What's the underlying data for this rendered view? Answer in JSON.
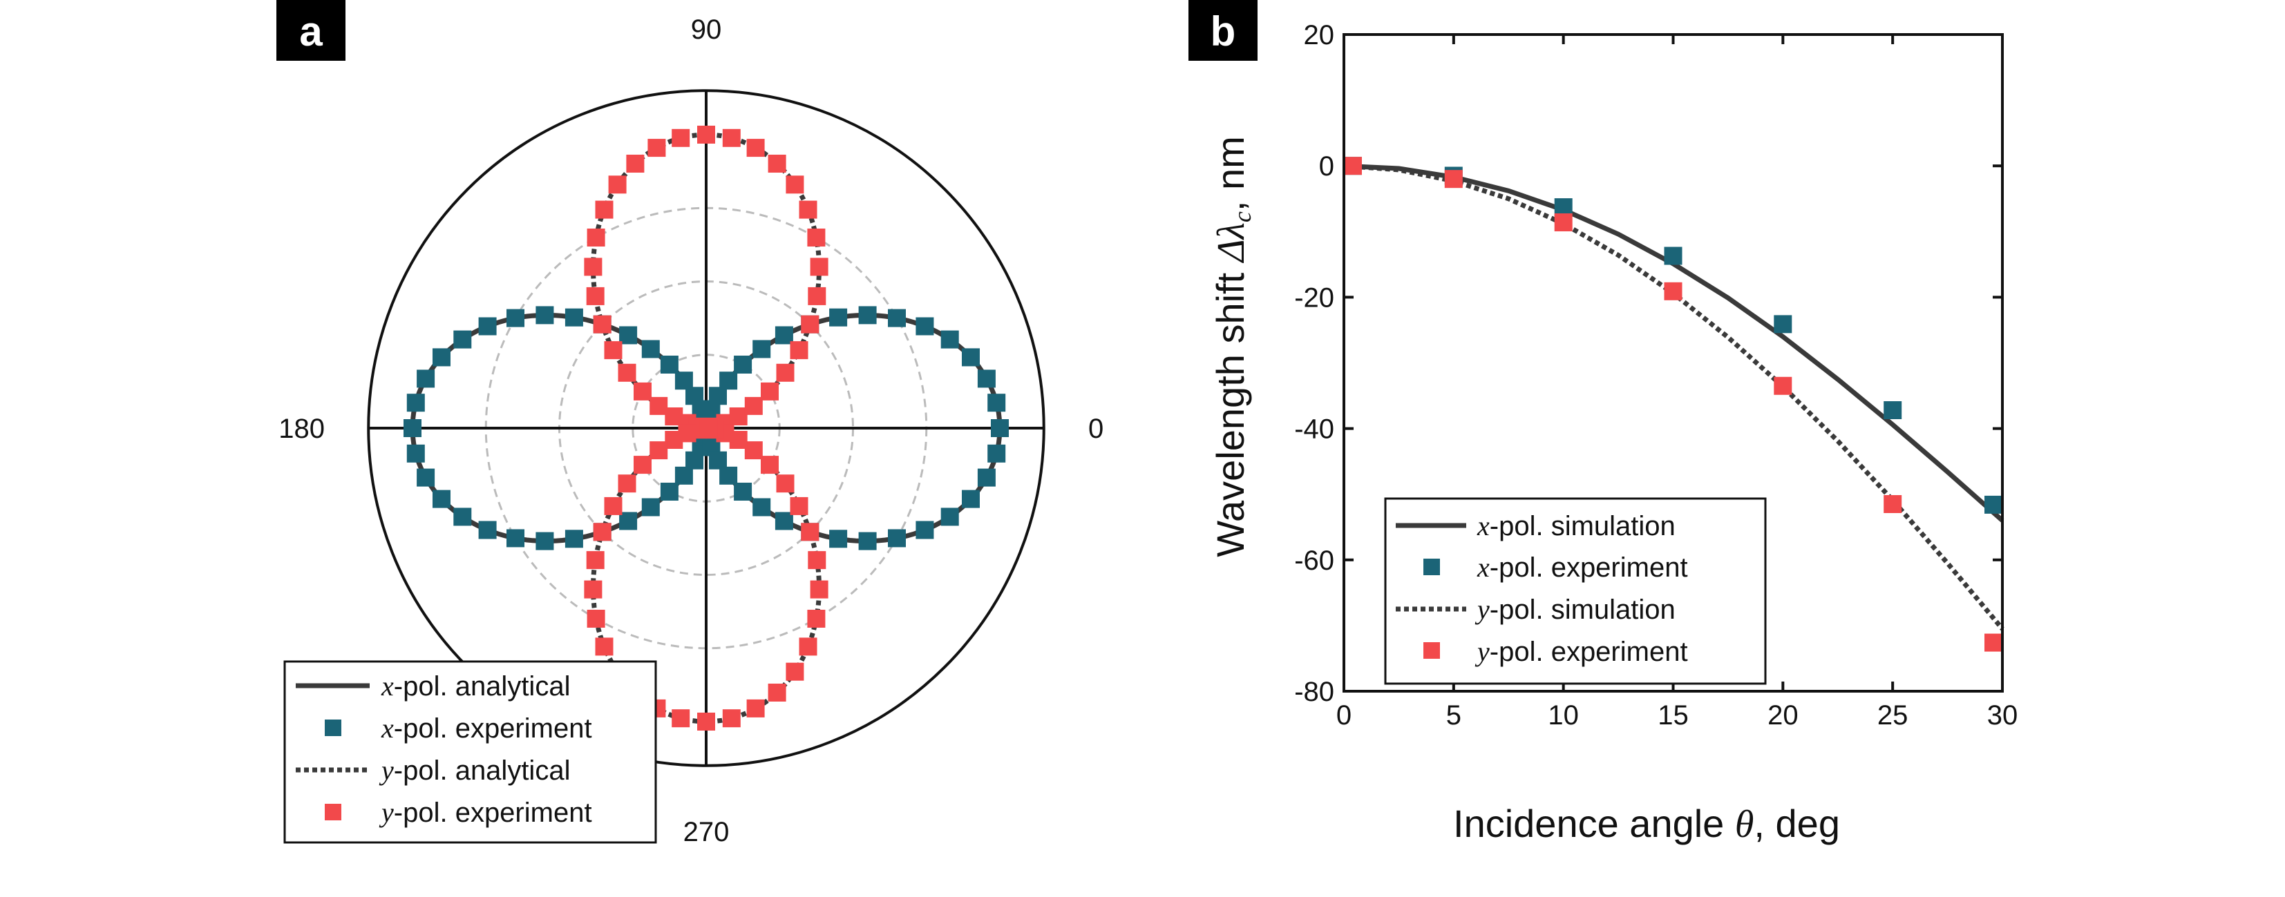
{
  "colors": {
    "x_pol": "#1b6477",
    "y_pol": "#f2494b",
    "line": "#3a3a3a",
    "grid": "#bbbbbb",
    "label_bg": "#000000"
  },
  "chart_data": [
    {
      "type": "polar",
      "panel_label": "a",
      "angle_unit": "deg",
      "angle_labels": {
        "a0": "0",
        "a90": "90",
        "a180": "180",
        "a270": "270"
      },
      "radial_range": [
        0,
        1
      ],
      "radial_gridlines": [
        0.25,
        0.5,
        0.75
      ],
      "outer_radius": 1.15,
      "grid": true,
      "legend_position": "bottom-left",
      "series": [
        {
          "name": "x-pol. analytical",
          "prefix": "x",
          "suffix": "-pol. analytical",
          "kind": "line",
          "style": "solid",
          "model": "r = cos^2(theta)",
          "range_start": 0,
          "range_end": 360
        },
        {
          "name": "x-pol. experiment",
          "prefix": "x",
          "suffix": "-pol. experiment",
          "kind": "markers",
          "marker": "square",
          "angles": [
            0,
            5,
            10,
            15,
            20,
            25,
            30,
            35,
            40,
            45,
            50,
            55,
            60,
            65,
            70,
            75,
            80,
            85,
            90,
            95,
            100,
            105,
            110,
            115,
            120,
            125,
            130,
            135,
            140,
            145,
            150,
            155,
            160,
            165,
            170,
            175,
            180,
            185,
            190,
            195,
            200,
            205,
            210,
            215,
            220,
            225,
            230,
            235,
            240,
            245,
            250,
            255,
            260,
            265,
            270,
            275,
            280,
            285,
            290,
            295,
            300,
            305,
            310,
            315,
            320,
            325,
            330,
            335,
            340,
            345,
            350,
            355
          ],
          "model": "r = cos^2(theta)"
        },
        {
          "name": "y-pol. analytical",
          "prefix": "y",
          "suffix": "-pol. analytical",
          "kind": "line",
          "style": "dotted",
          "model": "r = sin^2(theta)",
          "range_start": 0,
          "range_end": 360
        },
        {
          "name": "y-pol. experiment",
          "prefix": "y",
          "suffix": "-pol. experiment",
          "kind": "markers",
          "marker": "square",
          "angles": [
            0,
            5,
            10,
            15,
            20,
            25,
            30,
            35,
            40,
            45,
            50,
            55,
            60,
            65,
            70,
            75,
            80,
            85,
            90,
            95,
            100,
            105,
            110,
            115,
            120,
            125,
            130,
            135,
            140,
            145,
            150,
            155,
            160,
            165,
            170,
            175,
            180,
            185,
            190,
            195,
            200,
            205,
            210,
            215,
            220,
            225,
            230,
            235,
            240,
            245,
            250,
            255,
            260,
            265,
            270,
            275,
            280,
            285,
            290,
            295,
            300,
            305,
            310,
            315,
            320,
            325,
            330,
            335,
            340,
            345,
            350,
            355
          ],
          "model": "r = sin^2(theta)"
        }
      ]
    },
    {
      "type": "line",
      "panel_label": "b",
      "xlabel": "Incidence angle",
      "xlabel_symbol": "θ",
      "xlabel_unit": ", deg",
      "ylabel": "Wavelength shift",
      "ylabel_symbol": "Δλ",
      "ylabel_subscript": "c",
      "ylabel_unit": ", nm",
      "xlim": [
        0,
        30
      ],
      "ylim": [
        -80,
        20
      ],
      "xticks": [
        0,
        5,
        10,
        15,
        20,
        25,
        30
      ],
      "yticks": [
        -80,
        -60,
        -40,
        -20,
        0,
        20
      ],
      "grid": false,
      "legend_position": "bottom-left",
      "series": [
        {
          "name": "x-pol. simulation",
          "prefix": "x",
          "suffix": "-pol. simulation",
          "kind": "line",
          "style": "solid",
          "x": [
            0,
            2.5,
            5,
            7.5,
            10,
            12.5,
            15,
            17.5,
            20,
            22.5,
            25,
            27.5,
            30
          ],
          "y": [
            0,
            -0.4,
            -1.7,
            -3.8,
            -6.7,
            -10.4,
            -14.9,
            -20.1,
            -26.0,
            -32.5,
            -39.4,
            -46.6,
            -54.0
          ]
        },
        {
          "name": "x-pol. experiment",
          "prefix": "x",
          "suffix": "-pol. experiment",
          "kind": "markers",
          "marker": "square",
          "x": [
            0,
            5,
            10,
            15,
            20,
            25,
            30
          ],
          "y": [
            0,
            -1.5,
            -6.3,
            -13.7,
            -24.1,
            -37.2,
            -51.6
          ]
        },
        {
          "name": "y-pol. simulation",
          "prefix": "y",
          "suffix": "-pol. simulation",
          "kind": "line",
          "style": "dotted",
          "x": [
            0,
            2.5,
            5,
            7.5,
            10,
            12.5,
            15,
            17.5,
            20,
            22.5,
            25,
            27.5,
            30
          ],
          "y": [
            0,
            -0.6,
            -2.3,
            -5.0,
            -8.8,
            -13.6,
            -19.4,
            -26.1,
            -33.6,
            -41.9,
            -50.9,
            -60.5,
            -70.5
          ]
        },
        {
          "name": "y-pol. experiment",
          "prefix": "y",
          "suffix": "-pol. experiment",
          "kind": "markers",
          "marker": "square",
          "x": [
            0,
            5,
            10,
            15,
            20,
            25,
            30
          ],
          "y": [
            0,
            -2.0,
            -8.6,
            -19.1,
            -33.5,
            -51.5,
            -72.6
          ]
        }
      ]
    }
  ]
}
